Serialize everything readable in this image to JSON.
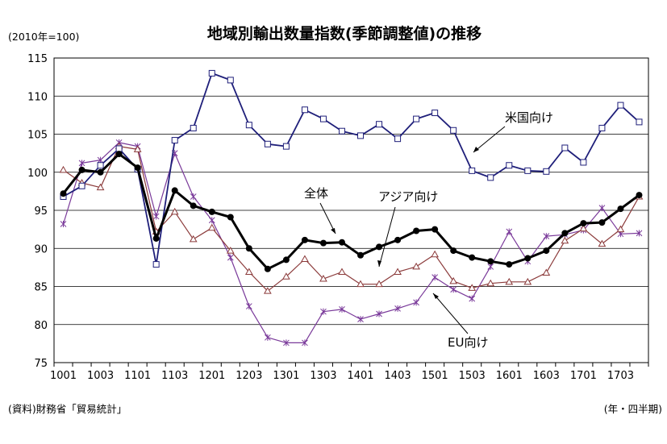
{
  "chart_data": {
    "type": "line",
    "title": "地域別輸出数量指数(季節調整値)の推移",
    "unit_label": "(2010年=100)",
    "source": "(資料)財務省「貿易統計」",
    "xunit": "(年・四半期)",
    "ylim": [
      75,
      115
    ],
    "yticks": [
      75,
      80,
      85,
      90,
      95,
      100,
      105,
      110,
      115
    ],
    "grid": true,
    "x": [
      "1001",
      "1002",
      "1003",
      "1004",
      "1101",
      "1102",
      "1103",
      "1104",
      "1201",
      "1202",
      "1203",
      "1204",
      "1301",
      "1302",
      "1303",
      "1304",
      "1401",
      "1402",
      "1403",
      "1404",
      "1501",
      "1502",
      "1503",
      "1504",
      "1601",
      "1602",
      "1603",
      "1604",
      "1701",
      "1702",
      "1703",
      "1704"
    ],
    "xtick_labels": [
      "1001",
      "1003",
      "1101",
      "1103",
      "1201",
      "1203",
      "1301",
      "1303",
      "1401",
      "1403",
      "1501",
      "1503",
      "1601",
      "1603",
      "1701",
      "1703"
    ],
    "series": [
      {
        "name": "米国向け",
        "color": "#1f1f7a",
        "marker": "square",
        "values": [
          96.8,
          98.2,
          100.9,
          103.1,
          100.4,
          87.9,
          104.2,
          105.8,
          113.0,
          112.1,
          106.2,
          103.7,
          103.4,
          108.2,
          107.0,
          105.4,
          104.8,
          106.3,
          104.4,
          107.0,
          107.8,
          105.5,
          100.2,
          99.3,
          100.9,
          100.2,
          100.1,
          103.2,
          101.3,
          105.8,
          108.8,
          106.6
        ]
      },
      {
        "name": "全体",
        "color": "#000000",
        "marker": "circle",
        "values": [
          97.2,
          100.3,
          100.0,
          102.4,
          100.6,
          91.3,
          97.6,
          95.6,
          94.8,
          94.1,
          90.0,
          87.3,
          88.5,
          91.1,
          90.7,
          90.8,
          89.1,
          90.2,
          91.1,
          92.3,
          92.5,
          89.7,
          88.8,
          88.3,
          87.9,
          88.7,
          89.7,
          92.0,
          93.3,
          93.4,
          95.2,
          97.0
        ]
      },
      {
        "name": "アジア向け",
        "color": "#8b3a3a",
        "marker": "triangle",
        "values": [
          100.3,
          98.6,
          98.0,
          103.4,
          103.0,
          92.2,
          94.8,
          91.2,
          92.7,
          89.7,
          86.9,
          84.4,
          86.3,
          88.6,
          86.0,
          86.9,
          85.3,
          85.3,
          86.9,
          87.6,
          89.2,
          85.7,
          84.8,
          85.4,
          85.6,
          85.6,
          86.8,
          91.0,
          92.6,
          90.6,
          92.5,
          96.8
        ]
      },
      {
        "name": "EU向け",
        "color": "#7a3a9a",
        "marker": "x",
        "values": [
          93.2,
          101.2,
          101.6,
          103.9,
          103.4,
          94.2,
          102.5,
          96.8,
          93.7,
          88.8,
          82.4,
          78.3,
          77.6,
          77.6,
          81.7,
          82.0,
          80.7,
          81.4,
          82.1,
          82.9,
          86.2,
          84.6,
          83.4,
          87.6,
          92.2,
          88.3,
          91.6,
          91.8,
          92.4,
          95.3,
          91.9,
          92.0
        ]
      }
    ]
  }
}
